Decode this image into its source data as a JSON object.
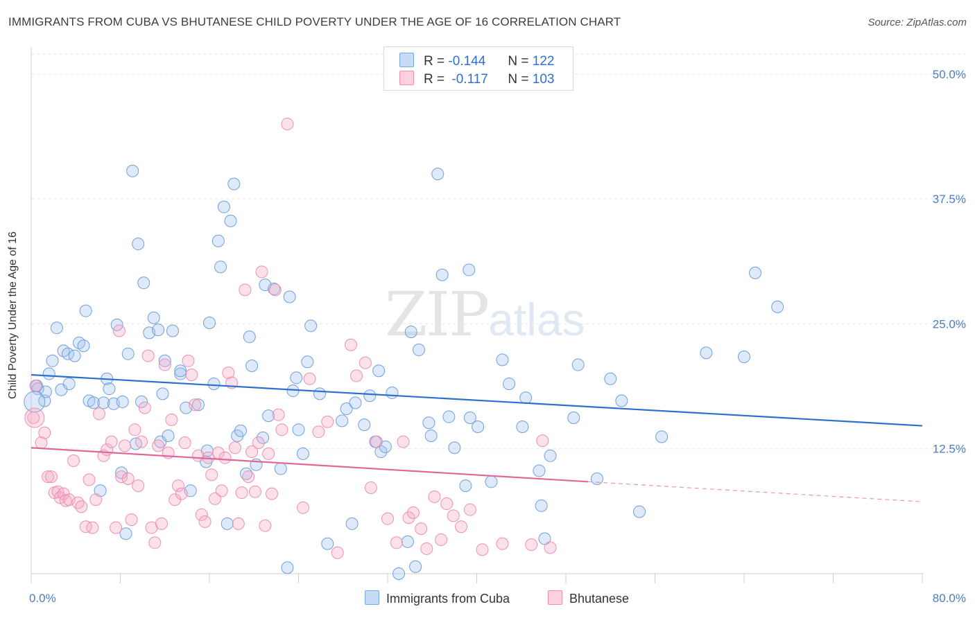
{
  "header": {
    "title": "IMMIGRANTS FROM CUBA VS BHUTANESE CHILD POVERTY UNDER THE AGE OF 16 CORRELATION CHART",
    "source": "Source: ZipAtlas.com"
  },
  "watermark": {
    "zip": "ZIP",
    "atlas": "atlas"
  },
  "legend": {
    "r_label": "R =",
    "n_label": "N =",
    "rows": [
      {
        "r": "-0.144",
        "n": "122",
        "color": "#7aa7e0"
      },
      {
        "r": "-0.117",
        "n": "103",
        "color": "#f28fb0"
      }
    ]
  },
  "chart_data": {
    "type": "scatter",
    "title": "IMMIGRANTS FROM CUBA VS BHUTANESE CHILD POVERTY UNDER THE AGE OF 16 CORRELATION CHART",
    "xlabel": "",
    "ylabel": "Child Poverty Under the Age of 16",
    "xlim": [
      0,
      80
    ],
    "ylim": [
      0,
      52
    ],
    "x_tick_labels": [
      "0.0%",
      "80.0%"
    ],
    "y_ticks": [
      12.5,
      25.0,
      37.5,
      50.0
    ],
    "y_tick_labels": [
      "12.5%",
      "25.0%",
      "37.5%",
      "50.0%"
    ],
    "grid": true,
    "legend_position": "bottom-center",
    "series": [
      {
        "name": "Immigrants from Cuba",
        "color": "#7aa7e0",
        "trend": {
          "x": [
            0,
            80
          ],
          "y": [
            19.9,
            14.8
          ]
        },
        "points": [
          [
            0.5,
            18.8
          ],
          [
            0.6,
            18.5
          ],
          [
            1.2,
            17.3
          ],
          [
            1.3,
            18.2
          ],
          [
            1.6,
            20.0
          ],
          [
            1.9,
            21.3
          ],
          [
            2.3,
            24.6
          ],
          [
            2.7,
            18.4
          ],
          [
            2.9,
            22.3
          ],
          [
            3.3,
            22.0
          ],
          [
            3.4,
            19.0
          ],
          [
            3.9,
            21.8
          ],
          [
            4.3,
            23.1
          ],
          [
            4.7,
            22.8
          ],
          [
            4.9,
            26.3
          ],
          [
            5.2,
            17.3
          ],
          [
            5.6,
            17.1
          ],
          [
            6.2,
            8.3
          ],
          [
            6.5,
            17.1
          ],
          [
            6.8,
            19.5
          ],
          [
            7.0,
            18.5
          ],
          [
            7.4,
            17.0
          ],
          [
            7.7,
            24.9
          ],
          [
            8.1,
            10.1
          ],
          [
            8.2,
            17.2
          ],
          [
            8.5,
            4.0
          ],
          [
            8.7,
            22.0
          ],
          [
            9.1,
            40.3
          ],
          [
            9.4,
            13.0
          ],
          [
            9.6,
            33.0
          ],
          [
            9.9,
            17.2
          ],
          [
            10.1,
            29.1
          ],
          [
            10.6,
            24.1
          ],
          [
            11.0,
            25.6
          ],
          [
            11.4,
            24.4
          ],
          [
            11.6,
            13.2
          ],
          [
            11.8,
            18.0
          ],
          [
            12.0,
            21.3
          ],
          [
            12.3,
            13.8
          ],
          [
            12.7,
            24.3
          ],
          [
            13.4,
            20.0
          ],
          [
            13.4,
            20.3
          ],
          [
            13.9,
            16.6
          ],
          [
            14.3,
            8.3
          ],
          [
            15.0,
            16.9
          ],
          [
            15.7,
            11.2
          ],
          [
            15.8,
            12.3
          ],
          [
            16.0,
            25.1
          ],
          [
            16.4,
            19.0
          ],
          [
            16.8,
            33.3
          ],
          [
            17.0,
            30.7
          ],
          [
            17.3,
            36.7
          ],
          [
            17.6,
            5.0
          ],
          [
            17.9,
            35.3
          ],
          [
            18.2,
            39.0
          ],
          [
            18.5,
            13.8
          ],
          [
            18.8,
            14.3
          ],
          [
            19.3,
            10.0
          ],
          [
            19.6,
            23.7
          ],
          [
            19.8,
            20.8
          ],
          [
            20.2,
            10.9
          ],
          [
            20.8,
            13.6
          ],
          [
            21.0,
            28.9
          ],
          [
            21.3,
            15.8
          ],
          [
            21.8,
            28.5
          ],
          [
            22.4,
            10.5
          ],
          [
            23.0,
            0.6
          ],
          [
            23.2,
            27.7
          ],
          [
            23.5,
            18.3
          ],
          [
            23.8,
            19.6
          ],
          [
            24.0,
            14.4
          ],
          [
            24.4,
            12.0
          ],
          [
            24.8,
            21.2
          ],
          [
            25.1,
            24.8
          ],
          [
            25.9,
            18.0
          ],
          [
            26.6,
            3.0
          ],
          [
            27.9,
            15.3
          ],
          [
            28.3,
            16.5
          ],
          [
            28.8,
            5.0
          ],
          [
            29.1,
            17.1
          ],
          [
            29.9,
            14.9
          ],
          [
            30.4,
            17.8
          ],
          [
            30.9,
            13.2
          ],
          [
            31.2,
            20.3
          ],
          [
            31.4,
            12.2
          ],
          [
            31.8,
            12.7
          ],
          [
            32.4,
            18.1
          ],
          [
            33.0,
            0.0
          ],
          [
            33.8,
            3.2
          ],
          [
            34.1,
            24.2
          ],
          [
            34.5,
            0.7
          ],
          [
            34.8,
            22.4
          ],
          [
            35.7,
            15.1
          ],
          [
            35.9,
            13.8
          ],
          [
            36.5,
            40.0
          ],
          [
            36.9,
            29.9
          ],
          [
            37.5,
            15.7
          ],
          [
            38.0,
            12.6
          ],
          [
            39.0,
            8.8
          ],
          [
            39.3,
            30.4
          ],
          [
            39.4,
            15.6
          ],
          [
            40.1,
            14.7
          ],
          [
            41.3,
            9.2
          ],
          [
            42.3,
            21.4
          ],
          [
            42.9,
            19.0
          ],
          [
            44.4,
            17.6
          ],
          [
            44.1,
            14.7
          ],
          [
            45.6,
            10.3
          ],
          [
            45.8,
            6.8
          ],
          [
            46.1,
            3.5
          ],
          [
            46.6,
            11.8
          ],
          [
            48.7,
            15.6
          ],
          [
            49.1,
            20.9
          ],
          [
            50.8,
            9.5
          ],
          [
            52.0,
            19.5
          ],
          [
            53.0,
            17.3
          ],
          [
            54.6,
            6.2
          ],
          [
            56.6,
            13.7
          ],
          [
            60.6,
            22.1
          ],
          [
            64.0,
            21.7
          ],
          [
            65.0,
            30.1
          ],
          [
            67.0,
            26.7
          ]
        ]
      },
      {
        "name": "Bhutanese",
        "color": "#f28fb0",
        "trend": {
          "x": [
            0,
            50
          ],
          "y": [
            12.6,
            9.2
          ]
        },
        "trend_dashed": {
          "x": [
            50,
            80
          ],
          "y": [
            9.2,
            7.2
          ]
        },
        "points": [
          [
            0.2,
            15.6
          ],
          [
            0.4,
            18.8
          ],
          [
            0.9,
            13.1
          ],
          [
            1.2,
            14.1
          ],
          [
            1.5,
            9.7
          ],
          [
            1.8,
            9.7
          ],
          [
            2.1,
            8.1
          ],
          [
            2.4,
            8.2
          ],
          [
            2.6,
            7.6
          ],
          [
            2.9,
            8.0
          ],
          [
            3.1,
            7.3
          ],
          [
            3.4,
            7.4
          ],
          [
            3.8,
            11.3
          ],
          [
            4.2,
            7.1
          ],
          [
            4.5,
            6.7
          ],
          [
            4.9,
            4.7
          ],
          [
            5.2,
            9.4
          ],
          [
            5.5,
            4.6
          ],
          [
            5.8,
            7.4
          ],
          [
            6.1,
            16.0
          ],
          [
            6.5,
            11.8
          ],
          [
            6.8,
            12.4
          ],
          [
            7.2,
            13.2
          ],
          [
            7.6,
            4.6
          ],
          [
            7.9,
            24.3
          ],
          [
            8.1,
            9.7
          ],
          [
            8.4,
            12.8
          ],
          [
            8.7,
            9.5
          ],
          [
            9.0,
            5.4
          ],
          [
            9.3,
            14.4
          ],
          [
            9.6,
            8.8
          ],
          [
            9.9,
            13.2
          ],
          [
            10.2,
            16.6
          ],
          [
            10.5,
            21.8
          ],
          [
            10.8,
            4.6
          ],
          [
            11.1,
            3.1
          ],
          [
            11.4,
            12.8
          ],
          [
            11.7,
            5.0
          ],
          [
            12.0,
            20.9
          ],
          [
            12.3,
            12.1
          ],
          [
            12.6,
            15.4
          ],
          [
            12.9,
            7.4
          ],
          [
            13.2,
            8.8
          ],
          [
            13.5,
            8.0
          ],
          [
            13.8,
            13.1
          ],
          [
            14.1,
            21.3
          ],
          [
            14.4,
            19.9
          ],
          [
            14.7,
            16.9
          ],
          [
            15.0,
            11.8
          ],
          [
            15.3,
            5.9
          ],
          [
            15.6,
            5.2
          ],
          [
            15.9,
            11.6
          ],
          [
            16.2,
            9.9
          ],
          [
            16.5,
            7.5
          ],
          [
            16.8,
            12.1
          ],
          [
            17.1,
            8.3
          ],
          [
            17.4,
            11.6
          ],
          [
            17.7,
            20.1
          ],
          [
            18.0,
            19.1
          ],
          [
            18.3,
            12.6
          ],
          [
            18.6,
            5.0
          ],
          [
            18.9,
            8.1
          ],
          [
            19.2,
            28.4
          ],
          [
            19.5,
            9.7
          ],
          [
            19.8,
            12.2
          ],
          [
            20.1,
            8.2
          ],
          [
            20.4,
            13.1
          ],
          [
            20.7,
            30.2
          ],
          [
            21.0,
            4.8
          ],
          [
            21.3,
            12.0
          ],
          [
            21.6,
            8.0
          ],
          [
            21.9,
            28.4
          ],
          [
            22.2,
            15.9
          ],
          [
            22.5,
            14.4
          ],
          [
            23.0,
            45.0
          ],
          [
            24.4,
            6.6
          ],
          [
            25.0,
            19.5
          ],
          [
            25.8,
            14.2
          ],
          [
            26.6,
            15.2
          ],
          [
            27.5,
            2.1
          ],
          [
            28.7,
            22.9
          ],
          [
            29.2,
            19.8
          ],
          [
            30.0,
            21.1
          ],
          [
            30.5,
            8.6
          ],
          [
            31.0,
            13.2
          ],
          [
            32.0,
            5.5
          ],
          [
            32.8,
            3.1
          ],
          [
            33.4,
            13.2
          ],
          [
            33.9,
            5.6
          ],
          [
            34.3,
            6.1
          ],
          [
            35.0,
            4.5
          ],
          [
            35.5,
            2.5
          ],
          [
            36.2,
            7.7
          ],
          [
            36.8,
            3.4
          ],
          [
            37.3,
            7.0
          ],
          [
            37.9,
            5.8
          ],
          [
            38.6,
            4.7
          ],
          [
            39.4,
            6.4
          ],
          [
            40.5,
            2.4
          ],
          [
            42.3,
            3.0
          ],
          [
            44.9,
            2.9
          ],
          [
            45.9,
            13.3
          ],
          [
            46.6,
            2.6
          ]
        ]
      }
    ]
  },
  "bottom_legend": [
    {
      "label": "Immigrants from Cuba",
      "color": "#7aa7e0"
    },
    {
      "label": "Bhutanese",
      "color": "#f28fb0"
    }
  ]
}
